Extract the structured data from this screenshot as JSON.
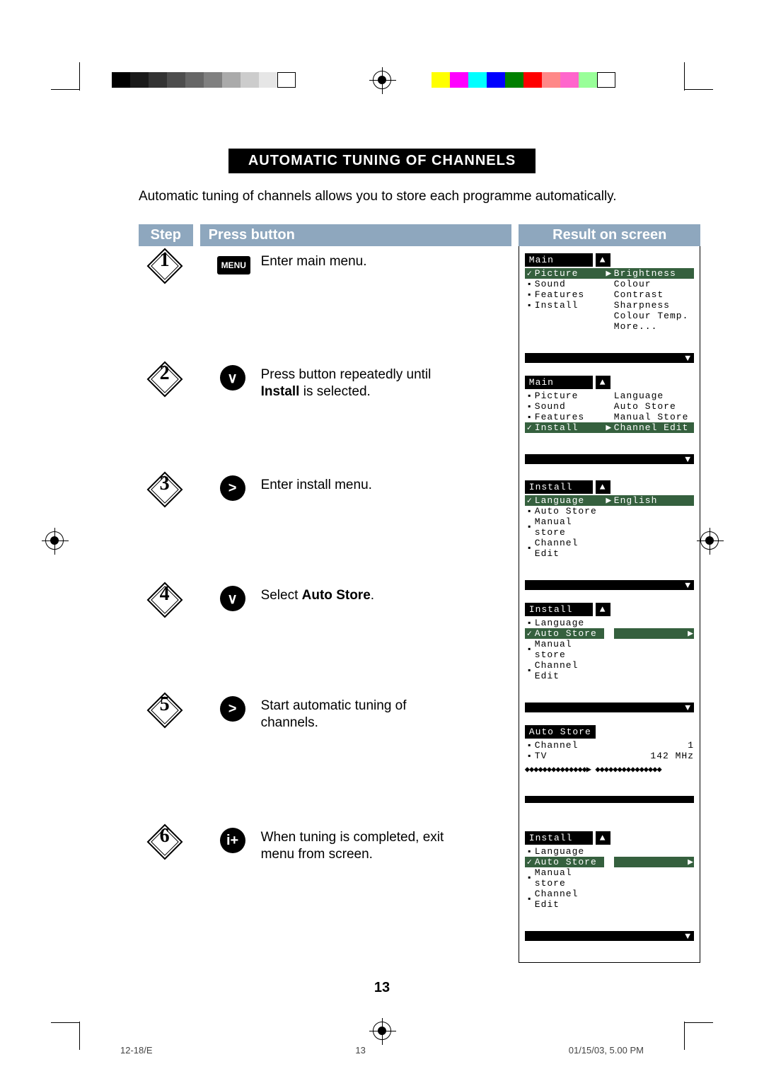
{
  "title": "AUTOMATIC TUNING OF CHANNELS",
  "intro": "Automatic tuning of channels allows you to store each programme automatically.",
  "headers": {
    "step": "Step",
    "press": "Press button",
    "result": "Result on screen"
  },
  "steps": [
    {
      "num": "1",
      "btn": "MENU",
      "btnType": "menu",
      "text_pre": "Enter main menu.",
      "bold": "",
      "text_post": ""
    },
    {
      "num": "2",
      "btn": "∨",
      "btnType": "round",
      "text_pre": "Press button repeatedly until ",
      "bold": "Install",
      "text_post": " is selected."
    },
    {
      "num": "3",
      "btn": ">",
      "btnType": "round",
      "text_pre": "Enter install menu.",
      "bold": "",
      "text_post": ""
    },
    {
      "num": "4",
      "btn": "∨",
      "btnType": "round",
      "text_pre": "Select ",
      "bold": "Auto Store",
      "text_post": "."
    },
    {
      "num": "5",
      "btn": ">",
      "btnType": "round",
      "text_pre": "Start automatic tuning of channels.",
      "bold": "",
      "text_post": ""
    },
    {
      "num": "6",
      "btn": "i+",
      "btnType": "round",
      "text_pre": "When tuning is completed, exit menu from screen.",
      "bold": "",
      "text_post": ""
    }
  ],
  "osd": [
    {
      "title": "Main",
      "showUp": true,
      "rows": [
        {
          "mark": "✓",
          "label": "Picture",
          "arrow": "▶",
          "value": "Brightness",
          "active": true
        },
        {
          "mark": "▪",
          "label": "Sound",
          "arrow": "",
          "value": "Colour"
        },
        {
          "mark": "▪",
          "label": "Features",
          "arrow": "",
          "value": "Contrast"
        },
        {
          "mark": "▪",
          "label": "Install",
          "arrow": "",
          "value": "Sharpness"
        },
        {
          "mark": "",
          "label": "",
          "arrow": "",
          "value": "Colour Temp."
        },
        {
          "mark": "",
          "label": "",
          "arrow": "",
          "value": "More..."
        }
      ],
      "bottom": "down"
    },
    {
      "title": "Main",
      "showUp": true,
      "rows": [
        {
          "mark": "▪",
          "label": "Picture",
          "arrow": "",
          "value": "Language"
        },
        {
          "mark": "▪",
          "label": "Sound",
          "arrow": "",
          "value": "Auto Store"
        },
        {
          "mark": "▪",
          "label": "Features",
          "arrow": "",
          "value": "Manual Store"
        },
        {
          "mark": "✓",
          "label": "Install",
          "arrow": "▶",
          "value": "Channel Edit",
          "active": true
        }
      ],
      "bottom": "down"
    },
    {
      "title": "Install",
      "showUp": true,
      "rows": [
        {
          "mark": "✓",
          "label": "Language",
          "arrow": "▶",
          "value": "English",
          "active": true
        },
        {
          "mark": "▪",
          "label": "Auto Store",
          "arrow": "",
          "value": ""
        },
        {
          "mark": "▪",
          "label": "Manual store",
          "arrow": "",
          "value": ""
        },
        {
          "mark": "▪",
          "label": "Channel Edit",
          "arrow": "",
          "value": ""
        }
      ],
      "bottom": "down"
    },
    {
      "title": "Install",
      "showUp": true,
      "rows": [
        {
          "mark": "▪",
          "label": "Language",
          "arrow": "",
          "value": ""
        },
        {
          "mark": "✓",
          "label": "Auto Store",
          "arrow": "",
          "arrowR": "▶",
          "value": "",
          "active": true
        },
        {
          "mark": "▪",
          "label": "Manual store",
          "arrow": "",
          "value": ""
        },
        {
          "mark": "▪",
          "label": "Channel Edit",
          "arrow": "",
          "value": ""
        }
      ],
      "bottom": "down"
    },
    {
      "title": "Auto Store",
      "showUp": false,
      "rows": [
        {
          "mark": "▪",
          "label": "Channel",
          "arrow": "",
          "value": "1",
          "valRight": true
        },
        {
          "mark": "▪",
          "label": "TV",
          "arrow": "",
          "value": "142 MHz",
          "valRight": true
        }
      ],
      "progress": "◆◆◆◆◆◆◆◆◆◆◆◆◆◆▶ ◆◆◆◆◆◆◆◆◆◆◆◆◆◆◆",
      "bottom": "bar"
    },
    {
      "title": "Install",
      "showUp": true,
      "rows": [
        {
          "mark": "▪",
          "label": "Language",
          "arrow": "",
          "value": ""
        },
        {
          "mark": "✓",
          "label": "Auto Store",
          "arrow": "",
          "arrowR": "▶",
          "value": "",
          "active": true
        },
        {
          "mark": "▪",
          "label": "Manual store",
          "arrow": "",
          "value": ""
        },
        {
          "mark": "▪",
          "label": "Channel Edit",
          "arrow": "",
          "value": ""
        }
      ],
      "bottom": "down"
    }
  ],
  "page_number": "13",
  "footer": {
    "left": "12-18/E",
    "mid": "13",
    "right": "01/15/03, 5.00 PM"
  },
  "colors": {
    "graybar": [
      "#000000",
      "#1a1a1a",
      "#333333",
      "#4d4d4d",
      "#666666",
      "#808080",
      "#aaaaaa",
      "#cccccc",
      "#e6e6e6",
      "#ffffff"
    ],
    "colorbar": [
      "#ffff00",
      "#ff00ff",
      "#00ffff",
      "#0000ff",
      "#008000",
      "#ff0000",
      "#ff8888",
      "#ff66cc",
      "#99ff99",
      "#ffffff"
    ],
    "header_bg": "#8ea7be",
    "active_bg": "#35603e"
  }
}
